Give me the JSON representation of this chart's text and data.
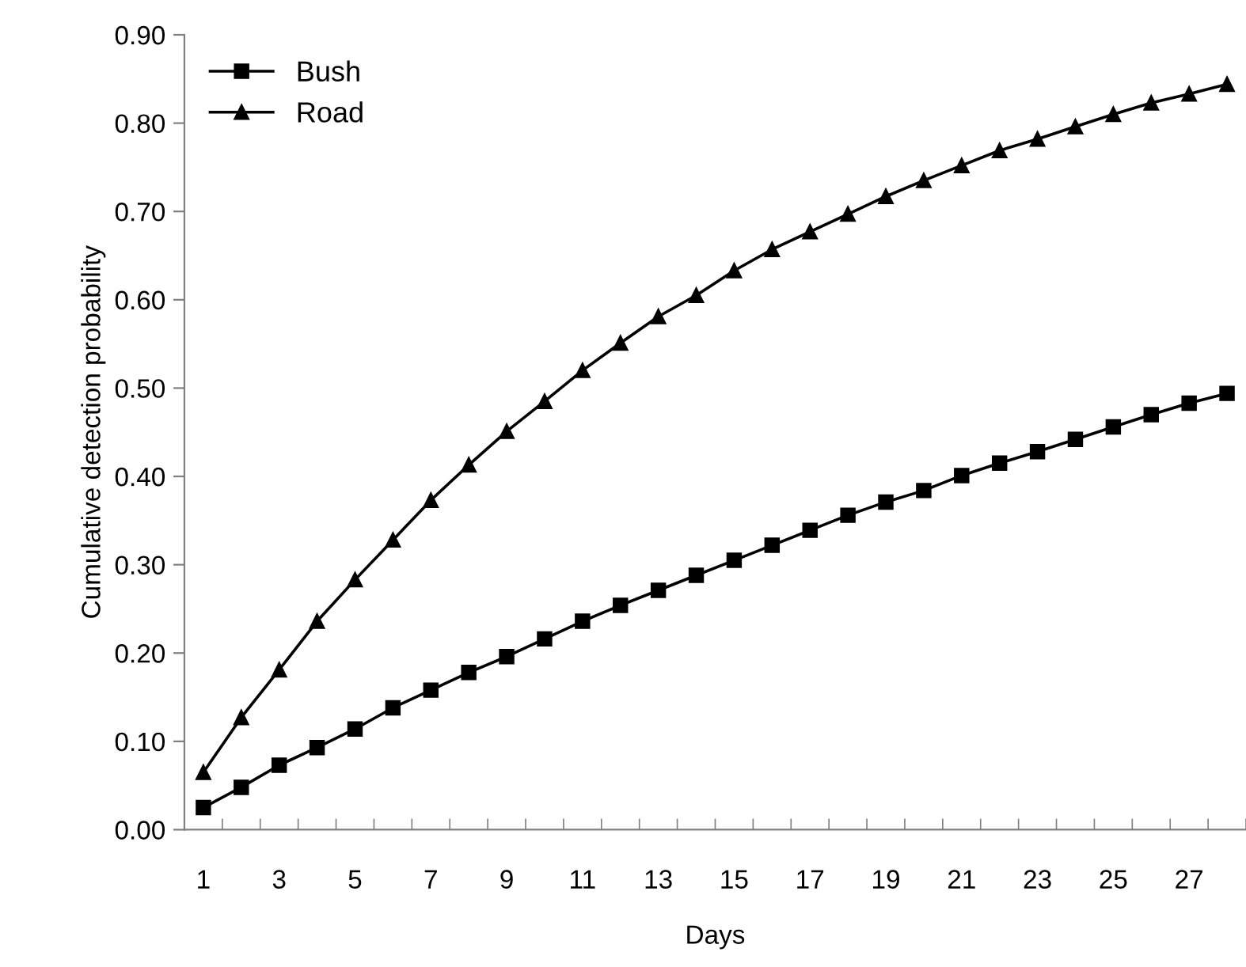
{
  "chart_data": {
    "type": "line",
    "xlabel": "Days",
    "ylabel": "Cumulative detection probability",
    "categories": [
      "1",
      null,
      "3",
      null,
      "5",
      null,
      "7",
      null,
      "9",
      null,
      "11",
      null,
      "13",
      null,
      "15",
      null,
      "17",
      null,
      "19",
      null,
      "21",
      null,
      "23",
      null,
      "25",
      null,
      "27",
      null
    ],
    "series": [
      {
        "name": "Bush",
        "color": "#000000",
        "marker": "square",
        "values": [
          0.025,
          0.048,
          0.073,
          0.093,
          0.114,
          0.138,
          0.158,
          0.178,
          0.196,
          0.216,
          0.236,
          0.254,
          0.271,
          0.288,
          0.305,
          0.322,
          0.339,
          0.356,
          0.371,
          0.384,
          0.401,
          0.415,
          0.428,
          0.442,
          0.456,
          0.47,
          0.483,
          0.494
        ]
      },
      {
        "name": "Road",
        "color": "#000000",
        "marker": "triangle",
        "values": [
          0.065,
          0.127,
          0.181,
          0.236,
          0.283,
          0.328,
          0.373,
          0.413,
          0.451,
          0.485,
          0.52,
          0.551,
          0.581,
          0.605,
          0.633,
          0.657,
          0.677,
          0.697,
          0.717,
          0.735,
          0.752,
          0.769,
          0.782,
          0.796,
          0.81,
          0.823,
          0.833,
          0.844
        ]
      }
    ],
    "ylim": [
      0,
      0.9
    ],
    "yticks": [
      {
        "value": 0,
        "label": "0.00"
      },
      {
        "value": 0.1,
        "label": "0.10"
      },
      {
        "value": 0.2,
        "label": "0.20"
      },
      {
        "value": 0.3,
        "label": "0.30"
      },
      {
        "value": 0.4,
        "label": "0.40"
      },
      {
        "value": 0.5,
        "label": "0.50"
      },
      {
        "value": 0.6,
        "label": "0.60"
      },
      {
        "value": 0.7,
        "label": "0.70"
      },
      {
        "value": 0.8,
        "label": "0.80"
      },
      {
        "value": 0.9,
        "label": "0.90"
      }
    ],
    "grid": false,
    "legend": "top left",
    "line_style": "solid"
  }
}
